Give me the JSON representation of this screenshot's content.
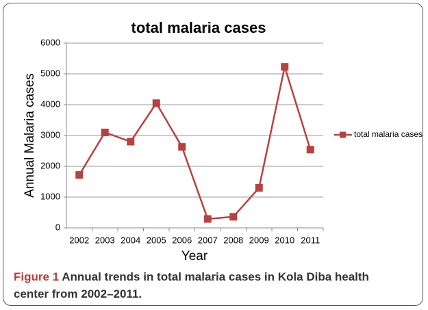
{
  "chart_data": {
    "type": "line",
    "title": "total malaria cases",
    "x_label": "Year",
    "y_label": "Annual Malaria cases",
    "categories": [
      "2002",
      "2003",
      "2004",
      "2005",
      "2006",
      "2007",
      "2008",
      "2009",
      "2010",
      "2011"
    ],
    "series": [
      {
        "name": "total malaria cases",
        "color": "#b8413f",
        "values": [
          1720,
          3100,
          2800,
          4050,
          2630,
          290,
          360,
          1300,
          5230,
          2540
        ]
      }
    ],
    "ylim": [
      0,
      6000
    ],
    "yticks": [
      0,
      1000,
      2000,
      3000,
      4000,
      5000,
      6000
    ],
    "grid": true,
    "legend": "right"
  },
  "caption": {
    "label": "Figure 1",
    "text": "Annual trends in total malaria cases in Kola Diba health center from 2002–2011."
  }
}
